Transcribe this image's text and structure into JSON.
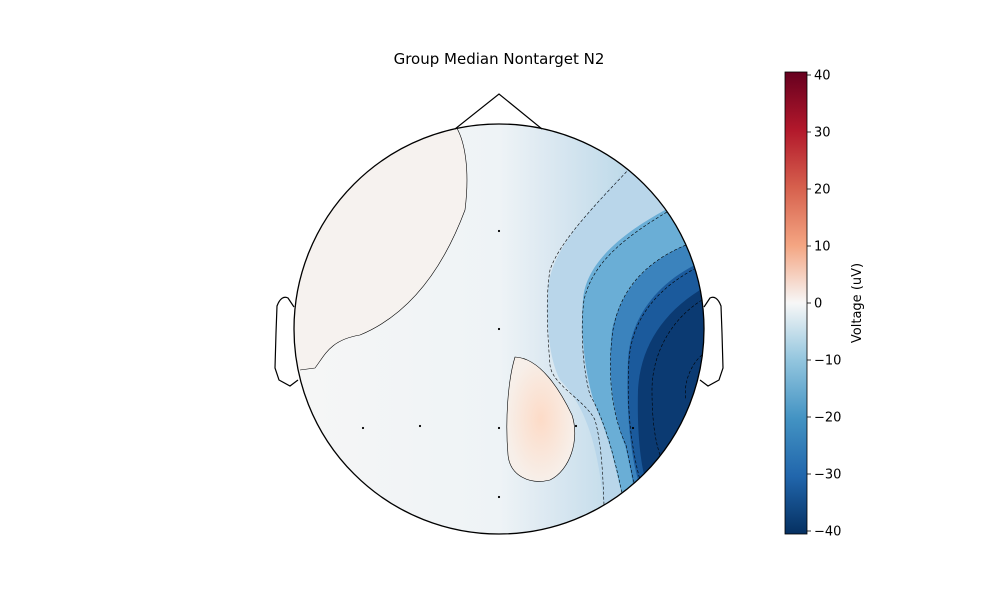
{
  "chart_data": {
    "type": "heatmap",
    "title": "Group Median Nontarget N2",
    "colorbar": {
      "label": "Voltage (uV)",
      "range": [
        -40,
        40
      ],
      "ticks": [
        40,
        30,
        20,
        10,
        0,
        -10,
        -20,
        -30,
        -40
      ],
      "tick_labels": [
        "40",
        "30",
        "20",
        "10",
        "0",
        "−10",
        "−20",
        "−30",
        "−40"
      ],
      "colormap": "RdBu_r"
    },
    "colors": {
      "low": "#053061",
      "mid": "#f7f7f7",
      "high": "#67001f"
    },
    "grid": false,
    "map": "scalp topography (head outline with nose and ears)",
    "sensor_count": 8
  }
}
